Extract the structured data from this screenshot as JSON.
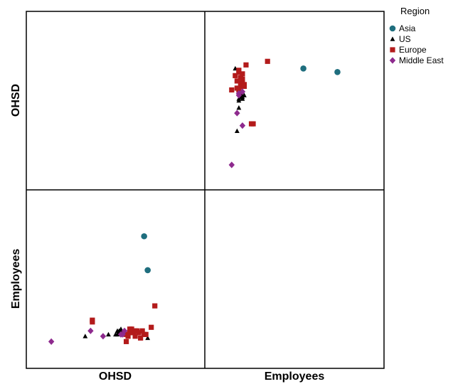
{
  "chart_data": {
    "type": "scatter",
    "subtype": "scatterplot-matrix",
    "variables": [
      "OHSD",
      "Employees"
    ],
    "legend": {
      "title": "Region",
      "placement": "top-right",
      "entries": [
        {
          "name": "Asia",
          "color": "#1f6e7e",
          "marker": "circle"
        },
        {
          "name": "US",
          "color": "#000000",
          "marker": "triangle"
        },
        {
          "name": "Europe",
          "color": "#b31b1b",
          "marker": "square"
        },
        {
          "name": "Middle East",
          "color": "#8e2a8e",
          "marker": "diamond"
        }
      ]
    },
    "grid": false,
    "axis_ranges": {
      "OHSD": [
        0,
        100
      ],
      "Employees": [
        0,
        100
      ]
    },
    "points": [
      {
        "region": "Asia",
        "OHSD": 66,
        "Employees": 74
      },
      {
        "region": "Asia",
        "OHSD": 68,
        "Employees": 55
      },
      {
        "region": "US",
        "OHSD": 51,
        "Employees": 21
      },
      {
        "region": "US",
        "OHSD": 52,
        "Employees": 20
      },
      {
        "region": "US",
        "OHSD": 51,
        "Employees": 19
      },
      {
        "region": "US",
        "OHSD": 53,
        "Employees": 22
      },
      {
        "region": "US",
        "OHSD": 54,
        "Employees": 20
      },
      {
        "region": "US",
        "OHSD": 52,
        "Employees": 21
      },
      {
        "region": "US",
        "OHSD": 50,
        "Employees": 19
      },
      {
        "region": "US",
        "OHSD": 53,
        "Employees": 21
      },
      {
        "region": "US",
        "OHSD": 46,
        "Employees": 19
      },
      {
        "region": "US",
        "OHSD": 68,
        "Employees": 17
      },
      {
        "region": "US",
        "OHSD": 33,
        "Employees": 18
      },
      {
        "region": "Europe",
        "OHSD": 37,
        "Employees": 27
      },
      {
        "region": "Europe",
        "OHSD": 37,
        "Employees": 26
      },
      {
        "region": "Europe",
        "OHSD": 59,
        "Employees": 22
      },
      {
        "region": "Europe",
        "OHSD": 61,
        "Employees": 21
      },
      {
        "region": "Europe",
        "OHSD": 56,
        "Employees": 19
      },
      {
        "region": "Europe",
        "OHSD": 60,
        "Employees": 20
      },
      {
        "region": "Europe",
        "OHSD": 58,
        "Employees": 20
      },
      {
        "region": "Europe",
        "OHSD": 62,
        "Employees": 21
      },
      {
        "region": "Europe",
        "OHSD": 63,
        "Employees": 20
      },
      {
        "region": "Europe",
        "OHSD": 57,
        "Employees": 18
      },
      {
        "region": "Europe",
        "OHSD": 55,
        "Employees": 20
      },
      {
        "region": "Europe",
        "OHSD": 66,
        "Employees": 19
      },
      {
        "region": "Europe",
        "OHSD": 65,
        "Employees": 21
      },
      {
        "region": "Europe",
        "OHSD": 67,
        "Employees": 19
      },
      {
        "region": "Europe",
        "OHSD": 70,
        "Employees": 23
      },
      {
        "region": "Europe",
        "OHSD": 72,
        "Employees": 35
      },
      {
        "region": "Europe",
        "OHSD": 64,
        "Employees": 17
      },
      {
        "region": "Europe",
        "OHSD": 58,
        "Employees": 22
      },
      {
        "region": "Europe",
        "OHSD": 56,
        "Employees": 15
      },
      {
        "region": "Europe",
        "OHSD": 61,
        "Employees": 18
      },
      {
        "region": "Middle East",
        "OHSD": 14,
        "Employees": 15
      },
      {
        "region": "Middle East",
        "OHSD": 36,
        "Employees": 21
      },
      {
        "region": "Middle East",
        "OHSD": 43,
        "Employees": 18
      },
      {
        "region": "Middle East",
        "OHSD": 53,
        "Employees": 19
      },
      {
        "region": "Middle East",
        "OHSD": 54,
        "Employees": 19
      },
      {
        "region": "Middle East",
        "OHSD": 55,
        "Employees": 21
      }
    ]
  }
}
